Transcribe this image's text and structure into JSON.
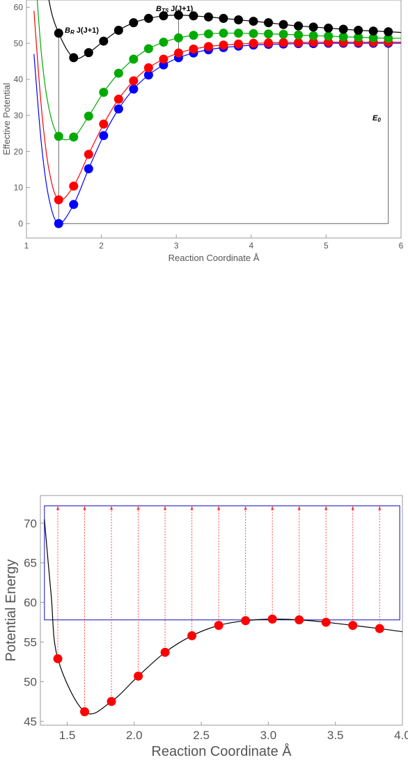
{
  "chart_data": [
    {
      "type": "scatter",
      "xlabel": "Reaction Coordinate Å",
      "ylabel": "Effective Potential",
      "xlim": [
        1,
        6
      ],
      "ylim": [
        -4,
        62
      ],
      "xticks": [
        1,
        2,
        3,
        4,
        5,
        6
      ],
      "yticks": [
        0,
        10,
        20,
        30,
        40,
        50,
        60
      ],
      "annotations": {
        "br_main": "B",
        "br_sub": "R",
        "br_suffix": " J(J+1)",
        "bts_main": "B",
        "bts_sub": "TS",
        "bts_suffix": " J(J+1)",
        "e0_main": "E",
        "e0_sub": "0"
      },
      "series": [
        {
          "color": "#0000ff",
          "x": [
            1.43,
            1.63,
            1.83,
            2.03,
            2.23,
            2.43,
            2.63,
            2.83,
            3.03,
            3.23,
            3.43,
            3.63,
            3.83,
            4.03,
            4.23,
            4.43,
            4.63,
            4.83,
            5.03,
            5.23,
            5.43,
            5.63,
            5.83
          ],
          "y": [
            0,
            5.3,
            15.2,
            24.4,
            31.8,
            37.3,
            41.2,
            44.0,
            46.0,
            47.3,
            48.2,
            48.8,
            49.2,
            49.5,
            49.7,
            49.8,
            49.9,
            49.9,
            50.0,
            50.0,
            50.0,
            50.0,
            50.0
          ]
        },
        {
          "color": "#ff0000",
          "x": [
            1.43,
            1.63,
            1.83,
            2.03,
            2.23,
            2.43,
            2.63,
            2.83,
            3.03,
            3.23,
            3.43,
            3.63,
            3.83,
            4.03,
            4.23,
            4.43,
            4.63,
            4.83,
            5.03,
            5.23,
            5.43,
            5.63,
            5.83
          ],
          "y": [
            6.6,
            10.4,
            19.2,
            27.6,
            34.5,
            39.6,
            43.2,
            45.6,
            47.3,
            48.4,
            49.1,
            49.5,
            49.8,
            50.0,
            50.1,
            50.2,
            50.2,
            50.3,
            50.3,
            50.3,
            50.3,
            50.3,
            50.3
          ]
        },
        {
          "color": "#00aa00",
          "x": [
            1.43,
            1.63,
            1.83,
            2.03,
            2.23,
            2.43,
            2.63,
            2.83,
            3.03,
            3.23,
            3.43,
            3.63,
            3.83,
            4.03,
            4.23,
            4.43,
            4.63,
            4.83,
            5.03,
            5.23,
            5.43,
            5.63,
            5.83
          ],
          "y": [
            24.2,
            24.0,
            29.8,
            36.4,
            41.7,
            45.6,
            48.5,
            50.3,
            51.5,
            52.2,
            52.6,
            52.8,
            52.8,
            52.7,
            52.6,
            52.5,
            52.3,
            52.1,
            52.0,
            51.8,
            51.7,
            51.5,
            51.4
          ]
        },
        {
          "color": "#000000",
          "x": [
            1.43,
            1.63,
            1.83,
            2.03,
            2.23,
            2.43,
            2.63,
            2.83,
            3.03,
            3.23,
            3.43,
            3.63,
            3.83,
            4.03,
            4.23,
            4.43,
            4.63,
            4.83,
            5.03,
            5.23,
            5.43,
            5.63,
            5.83
          ],
          "y": [
            52.8,
            46.0,
            47.4,
            50.6,
            53.6,
            55.7,
            56.9,
            57.6,
            57.8,
            57.6,
            57.3,
            56.9,
            56.5,
            56.1,
            55.7,
            55.2,
            54.8,
            54.5,
            54.2,
            53.9,
            53.6,
            53.4,
            53.2
          ]
        }
      ]
    },
    {
      "type": "scatter",
      "xlabel": "Reaction Coordinate Å",
      "ylabel": "Potential Energy",
      "xlim": [
        1.3,
        4.0
      ],
      "ylim": [
        44.5,
        73.5
      ],
      "xticks": [
        1.5,
        2.0,
        2.5,
        3.0,
        3.5,
        4.0
      ],
      "xtick_labels": [
        "1.5",
        "2.0",
        "2.5",
        "3.0",
        "3.5",
        "4.0"
      ],
      "yticks": [
        45,
        50,
        55,
        60,
        65,
        70
      ],
      "box": {
        "x0": 1.33,
        "x1": 3.98,
        "y0": 57.8,
        "y1": 72.2
      },
      "series": [
        {
          "color": "#ff0000",
          "x": [
            1.43,
            1.63,
            1.83,
            2.03,
            2.23,
            2.43,
            2.63,
            2.83,
            3.03,
            3.23,
            3.43,
            3.63,
            3.83
          ],
          "y": [
            52.9,
            46.2,
            47.5,
            50.7,
            53.7,
            55.8,
            57.1,
            57.7,
            57.9,
            57.8,
            57.5,
            57.1,
            56.7
          ]
        }
      ]
    }
  ]
}
